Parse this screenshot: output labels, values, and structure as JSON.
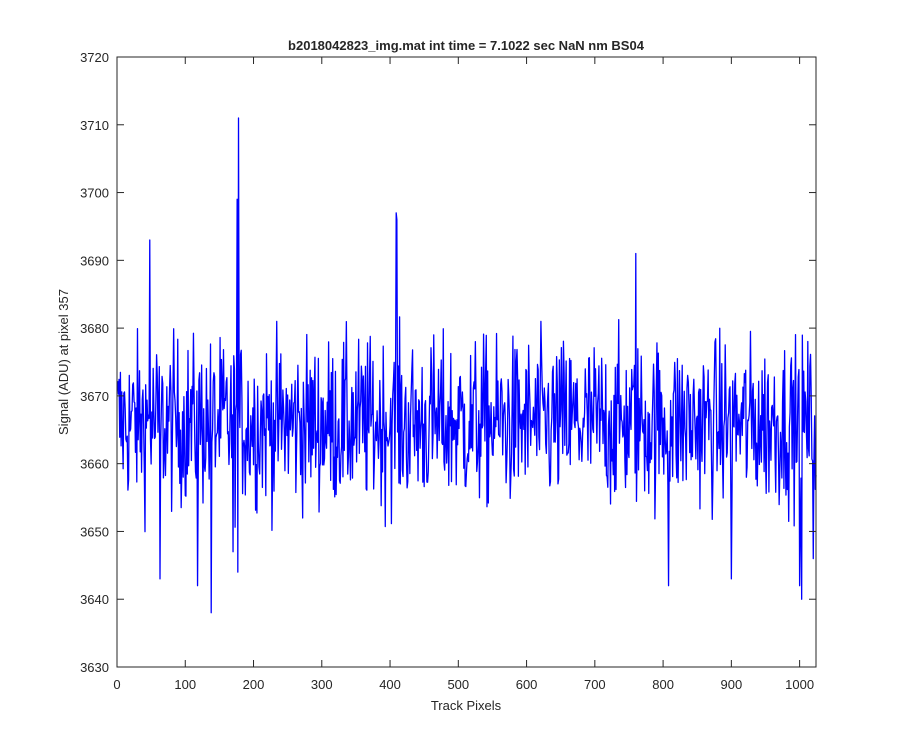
{
  "chart_data": {
    "type": "line",
    "title": "b2018042823_img.mat int time = 7.1022 sec  NaN nm BS04",
    "xlabel": "Track Pixels",
    "ylabel": "Signal (ADU) at pixel 357",
    "xlim": [
      0,
      1024
    ],
    "ylim": [
      3630,
      3720
    ],
    "xticks": [
      0,
      100,
      200,
      300,
      400,
      500,
      600,
      700,
      800,
      900,
      1000
    ],
    "yticks": [
      3630,
      3640,
      3650,
      3660,
      3670,
      3680,
      3690,
      3700,
      3710,
      3720
    ],
    "grid": false,
    "series": [
      {
        "color": "#0000ff",
        "n_points": 1024,
        "baseline": 3666,
        "noise_range": [
          3643,
          3688
        ],
        "spikes": [
          {
            "x": 48,
            "y": 3693
          },
          {
            "x": 63,
            "y": 3643
          },
          {
            "x": 118,
            "y": 3642
          },
          {
            "x": 138,
            "y": 3638
          },
          {
            "x": 170,
            "y": 3647
          },
          {
            "x": 176,
            "y": 3699
          },
          {
            "x": 177,
            "y": 3644
          },
          {
            "x": 178,
            "y": 3711
          },
          {
            "x": 409,
            "y": 3697
          },
          {
            "x": 410,
            "y": 3696
          },
          {
            "x": 760,
            "y": 3691
          },
          {
            "x": 808,
            "y": 3642
          },
          {
            "x": 900,
            "y": 3643
          },
          {
            "x": 1000,
            "y": 3642
          },
          {
            "x": 1003,
            "y": 3640
          },
          {
            "x": 1020,
            "y": 3646
          }
        ]
      }
    ]
  }
}
